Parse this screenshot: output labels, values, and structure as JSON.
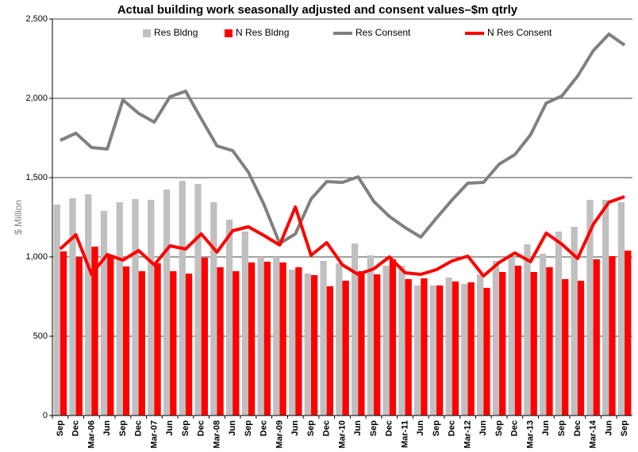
{
  "chart_data": {
    "type": "bar_line",
    "title": "Actual building work seasonally adjusted and consent values–$m qtrly",
    "ylabel": "$ Million",
    "categories": [
      "Sep",
      "Dec",
      "Mar-06",
      "Jun",
      "Sep",
      "Dec",
      "Mar-07",
      "Jun",
      "Sep",
      "Dec",
      "Mar-08",
      "Jun",
      "Sep",
      "Dec",
      "Mar-09",
      "Jun",
      "Sep",
      "Dec",
      "Mar-10",
      "Jun",
      "Sep",
      "Dec",
      "Mar-11",
      "Jun",
      "Sep",
      "Dec",
      "Mar-12",
      "Jun",
      "Sep",
      "Dec",
      "Mar-13",
      "Jun",
      "Sep",
      "Dec",
      "Mar-14",
      "Jun",
      "Sep"
    ],
    "series": [
      {
        "name": "Res Bldng",
        "kind": "bar",
        "color": "#c0c0c0",
        "values": [
          1330,
          1370,
          1395,
          1290,
          1345,
          1365,
          1360,
          1425,
          1480,
          1460,
          1345,
          1235,
          1160,
          1000,
          1000,
          920,
          895,
          975,
          960,
          1085,
          1010,
          945,
          945,
          820,
          820,
          870,
          830,
          890,
          975,
          1000,
          1080,
          1020,
          1160,
          1190,
          1360,
          1360,
          1345
        ]
      },
      {
        "name": "N Res Bldng",
        "kind": "bar",
        "color": "#ff0000",
        "values": [
          1035,
          1000,
          1065,
          1010,
          940,
          910,
          960,
          910,
          895,
          995,
          935,
          910,
          965,
          970,
          965,
          935,
          885,
          815,
          850,
          910,
          890,
          985,
          860,
          865,
          820,
          845,
          840,
          805,
          905,
          945,
          905,
          935,
          860,
          850,
          985,
          1005,
          1040
        ]
      },
      {
        "name": "Res Consent",
        "kind": "line",
        "color": "#808080",
        "values": [
          1735,
          1780,
          1690,
          1680,
          1990,
          1905,
          1850,
          2010,
          2045,
          1870,
          1700,
          1670,
          1535,
          1330,
          1085,
          1145,
          1365,
          1475,
          1470,
          1505,
          1350,
          1255,
          1185,
          1125,
          1245,
          1360,
          1465,
          1470,
          1585,
          1645,
          1770,
          1970,
          2015,
          2140,
          2300,
          2405,
          2335
        ]
      },
      {
        "name": "N Res Consent",
        "kind": "line",
        "color": "#ff0000",
        "values": [
          1050,
          1140,
          890,
          1015,
          980,
          1040,
          950,
          1070,
          1050,
          1145,
          1030,
          1165,
          1190,
          1135,
          1075,
          1315,
          1010,
          1090,
          950,
          890,
          925,
          1000,
          900,
          890,
          920,
          975,
          1005,
          880,
          965,
          1025,
          970,
          1150,
          1080,
          990,
          1205,
          1345,
          1380
        ]
      }
    ],
    "ylim": [
      0,
      2500
    ],
    "yticks": [
      0,
      500,
      {
        "value": 1000,
        "label": "1,000"
      },
      {
        "value": 1500,
        "label": "1,500"
      },
      {
        "value": 2000,
        "label": "2,000"
      },
      {
        "value": 2500,
        "label": "2,500"
      }
    ],
    "grid": true
  }
}
